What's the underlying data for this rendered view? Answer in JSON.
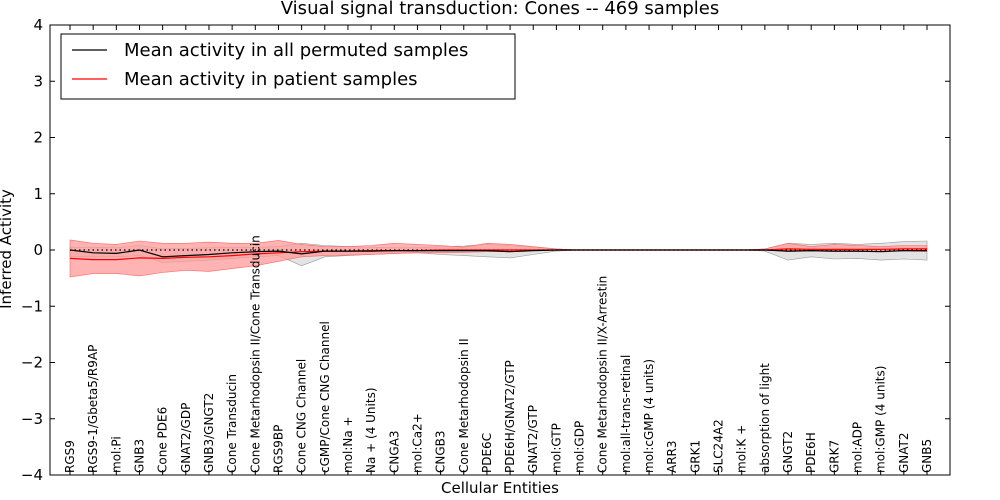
{
  "chart_data": {
    "type": "line",
    "title": "Visual signal transduction: Cones -- 469 samples",
    "xlabel": "Cellular Entities",
    "ylabel": "Inferred Activity",
    "ylim": [
      -4,
      4
    ],
    "yticks": [
      -4,
      -3,
      -2,
      -1,
      0,
      1,
      2,
      3,
      4
    ],
    "ytick_labels": [
      "−4",
      "−3",
      "−2",
      "−1",
      "0",
      "1",
      "2",
      "3",
      "4"
    ],
    "legend_position": "top-left",
    "colors": {
      "permuted_line": "#000000",
      "patient_line": "#ff0000",
      "permuted_band": "#d9d9d9",
      "patient_band": "#ff9999"
    },
    "categories": [
      "RGS9",
      "RGS9-1/Gbeta5/R9AP",
      "mol:Pi",
      "GNB3",
      "Cone PDE6",
      "GNAT2/GDP",
      "GNB3/GNGT2",
      "Cone Transducin",
      "Cone Metarhodopsin II/Cone Transducin",
      "RGS9BP",
      "Cone CNG Channel",
      "cGMP/Cone CNG Channel",
      "mol:Na +",
      "Na + (4 Units)",
      "CNGA3",
      "mol:Ca2+",
      "CNGB3",
      "Cone Metarhodopsin II",
      "PDE6C",
      "PDE6H/GNAT2/GTP",
      "GNAT2/GTP",
      "mol:GTP",
      "mol:GDP",
      "Cone Metarhodopsin II/X-Arrestin",
      "mol:all-trans-retinal",
      "mol:cGMP (4 units)",
      "ARR3",
      "GRK1",
      "SLC24A2",
      "mol:K +",
      "absorption of light",
      "GNGT2",
      "PDE6H",
      "GRK7",
      "mol:ADP",
      "mol:GMP (4 units)",
      "GNAT2",
      "GNB5"
    ],
    "series": [
      {
        "name": "Mean activity in all permuted samples",
        "color": "#000000",
        "values": [
          0,
          -0.05,
          -0.06,
          0.0,
          -0.12,
          -0.1,
          -0.08,
          -0.05,
          -0.03,
          -0.02,
          -0.07,
          -0.02,
          -0.02,
          -0.02,
          -0.01,
          -0.01,
          -0.01,
          -0.01,
          -0.01,
          -0.03,
          -0.01,
          0,
          0,
          0,
          0,
          0,
          0,
          0,
          0,
          0,
          0,
          -0.02,
          -0.01,
          -0.02,
          -0.02,
          -0.03,
          -0.01,
          -0.01
        ],
        "lower": [
          -0.12,
          -0.12,
          -0.12,
          -0.1,
          -0.22,
          -0.2,
          -0.18,
          -0.15,
          -0.12,
          -0.1,
          -0.28,
          -0.12,
          -0.1,
          -0.08,
          -0.06,
          -0.05,
          -0.08,
          -0.1,
          -0.12,
          -0.14,
          -0.08,
          -0.02,
          0,
          0,
          0,
          0,
          0,
          0,
          0,
          0,
          -0.02,
          -0.18,
          -0.12,
          -0.16,
          -0.15,
          -0.18,
          -0.16,
          -0.18
        ],
        "upper": [
          0.05,
          0.05,
          0.04,
          0.08,
          0.02,
          0.03,
          0.04,
          0.05,
          0.05,
          0.06,
          0.12,
          0.08,
          0.06,
          0.05,
          0.04,
          0.04,
          0.06,
          0.07,
          0.1,
          0.08,
          0.05,
          0.02,
          0,
          0,
          0,
          0,
          0,
          0,
          0,
          0,
          0.02,
          0.12,
          0.1,
          0.12,
          0.1,
          0.12,
          0.15,
          0.16
        ]
      },
      {
        "name": "Mean activity in patient samples",
        "color": "#ff0000",
        "values": [
          -0.15,
          -0.17,
          -0.17,
          -0.14,
          -0.15,
          -0.13,
          -0.12,
          -0.1,
          -0.07,
          -0.05,
          -0.03,
          -0.02,
          -0.02,
          -0.01,
          -0.01,
          -0.01,
          0,
          0,
          0,
          0,
          0,
          0,
          0,
          0,
          0,
          0,
          0,
          0,
          0,
          0,
          0,
          0.02,
          0.01,
          0.01,
          0.01,
          0.01,
          0.02,
          0.02
        ],
        "lower": [
          -0.48,
          -0.42,
          -0.42,
          -0.46,
          -0.4,
          -0.36,
          -0.38,
          -0.33,
          -0.28,
          -0.2,
          -0.12,
          -0.1,
          -0.09,
          -0.08,
          -0.06,
          -0.05,
          -0.05,
          -0.04,
          -0.03,
          -0.02,
          -0.01,
          0,
          0,
          0,
          0,
          0,
          0,
          0,
          0,
          0,
          0,
          -0.03,
          -0.02,
          -0.03,
          -0.03,
          -0.02,
          -0.02,
          -0.03
        ],
        "upper": [
          0.18,
          0.12,
          0.1,
          0.16,
          0.12,
          0.12,
          0.14,
          0.12,
          0.12,
          0.17,
          0.1,
          0.06,
          0.06,
          0.08,
          0.12,
          0.1,
          0.08,
          0.05,
          0.12,
          0.1,
          0.06,
          0.02,
          0,
          0,
          0,
          0,
          0,
          0,
          0,
          0,
          0.02,
          0.12,
          0.06,
          0.1,
          0.08,
          0.06,
          0.08,
          0.08
        ]
      },
      {
        "name": "zero reference",
        "style": "dotted",
        "values": [
          0,
          0,
          0,
          0,
          0,
          0,
          0,
          0,
          0,
          0,
          0,
          0,
          0,
          0,
          0,
          0,
          0,
          0,
          0,
          0,
          0,
          0,
          0,
          0,
          0,
          0,
          0,
          0,
          0,
          0,
          0,
          0,
          0,
          0,
          0,
          0,
          0,
          0
        ]
      }
    ]
  }
}
